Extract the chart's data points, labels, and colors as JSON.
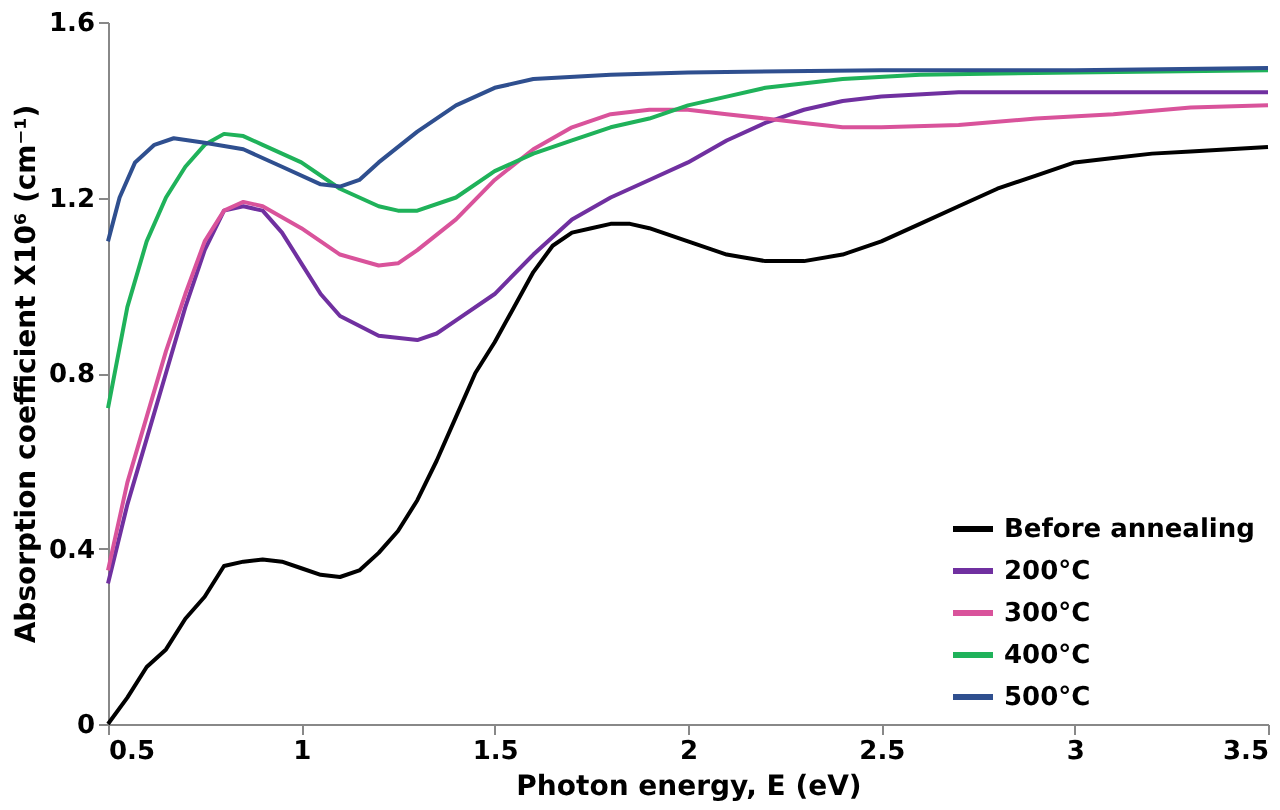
{
  "chart_data": {
    "type": "line",
    "xlabel": "Photon energy, E (eV)",
    "ylabel": "Absorption coefficient  X10⁶ (cm⁻¹)",
    "xlim": [
      0.5,
      3.5
    ],
    "xticks": [
      0.5,
      1,
      1.5,
      2,
      2.5,
      3,
      3.5
    ],
    "ylim": [
      0,
      1.6
    ],
    "yticks": [
      0,
      0.4,
      0.8,
      1.2,
      1.6
    ],
    "grid": false,
    "legend": "bottom right",
    "marker": "none",
    "line_style": "solid",
    "series": [
      {
        "name": "Before annealing",
        "color": "#000000",
        "x": [
          0.5,
          0.55,
          0.6,
          0.65,
          0.7,
          0.75,
          0.8,
          0.85,
          0.9,
          0.95,
          1.0,
          1.05,
          1.1,
          1.15,
          1.2,
          1.25,
          1.3,
          1.35,
          1.4,
          1.45,
          1.5,
          1.55,
          1.6,
          1.65,
          1.7,
          1.75,
          1.8,
          1.85,
          1.9,
          2.0,
          2.1,
          2.2,
          2.3,
          2.4,
          2.5,
          2.6,
          2.7,
          2.8,
          2.9,
          3.0,
          3.1,
          3.2,
          3.3,
          3.4,
          3.5
        ],
        "values": [
          0.0,
          0.06,
          0.13,
          0.17,
          0.24,
          0.29,
          0.36,
          0.37,
          0.375,
          0.37,
          0.355,
          0.34,
          0.335,
          0.35,
          0.39,
          0.44,
          0.51,
          0.6,
          0.7,
          0.8,
          0.87,
          0.95,
          1.03,
          1.09,
          1.12,
          1.13,
          1.14,
          1.14,
          1.13,
          1.1,
          1.07,
          1.055,
          1.055,
          1.07,
          1.1,
          1.14,
          1.18,
          1.22,
          1.25,
          1.28,
          1.29,
          1.3,
          1.305,
          1.31,
          1.315
        ]
      },
      {
        "name": "200°C",
        "color": "#7030a0",
        "x": [
          0.5,
          0.55,
          0.6,
          0.65,
          0.7,
          0.75,
          0.8,
          0.85,
          0.9,
          0.95,
          1.0,
          1.05,
          1.1,
          1.2,
          1.3,
          1.35,
          1.4,
          1.5,
          1.6,
          1.7,
          1.8,
          1.9,
          2.0,
          2.1,
          2.2,
          2.3,
          2.4,
          2.5,
          2.7,
          3.0,
          3.5
        ],
        "values": [
          0.32,
          0.5,
          0.65,
          0.8,
          0.95,
          1.08,
          1.17,
          1.18,
          1.17,
          1.12,
          1.05,
          0.98,
          0.93,
          0.885,
          0.875,
          0.89,
          0.92,
          0.98,
          1.07,
          1.15,
          1.2,
          1.24,
          1.28,
          1.33,
          1.37,
          1.4,
          1.42,
          1.43,
          1.44,
          1.44,
          1.44
        ]
      },
      {
        "name": "300°C",
        "color": "#d9539b",
        "x": [
          0.5,
          0.55,
          0.6,
          0.65,
          0.7,
          0.75,
          0.8,
          0.85,
          0.9,
          1.0,
          1.1,
          1.2,
          1.25,
          1.3,
          1.4,
          1.5,
          1.6,
          1.7,
          1.8,
          1.9,
          2.0,
          2.1,
          2.2,
          2.3,
          2.4,
          2.5,
          2.7,
          2.9,
          3.1,
          3.3,
          3.5
        ],
        "values": [
          0.35,
          0.55,
          0.7,
          0.85,
          0.98,
          1.1,
          1.17,
          1.19,
          1.18,
          1.13,
          1.07,
          1.045,
          1.05,
          1.08,
          1.15,
          1.24,
          1.31,
          1.36,
          1.39,
          1.4,
          1.4,
          1.39,
          1.38,
          1.37,
          1.36,
          1.36,
          1.365,
          1.38,
          1.39,
          1.405,
          1.41
        ]
      },
      {
        "name": "400°C",
        "color": "#1fb25a",
        "x": [
          0.5,
          0.55,
          0.6,
          0.65,
          0.7,
          0.75,
          0.8,
          0.85,
          0.9,
          1.0,
          1.1,
          1.2,
          1.25,
          1.3,
          1.4,
          1.5,
          1.6,
          1.7,
          1.8,
          1.9,
          2.0,
          2.1,
          2.2,
          2.4,
          2.6,
          3.0,
          3.5
        ],
        "values": [
          0.72,
          0.95,
          1.1,
          1.2,
          1.27,
          1.32,
          1.345,
          1.34,
          1.32,
          1.28,
          1.22,
          1.18,
          1.17,
          1.17,
          1.2,
          1.26,
          1.3,
          1.33,
          1.36,
          1.38,
          1.41,
          1.43,
          1.45,
          1.47,
          1.48,
          1.485,
          1.49
        ]
      },
      {
        "name": "500°C",
        "color": "#2f4f8f",
        "x": [
          0.5,
          0.53,
          0.57,
          0.62,
          0.67,
          0.75,
          0.85,
          0.95,
          1.05,
          1.1,
          1.15,
          1.2,
          1.3,
          1.4,
          1.5,
          1.6,
          1.8,
          2.0,
          2.5,
          3.0,
          3.5
        ],
        "values": [
          1.1,
          1.2,
          1.28,
          1.32,
          1.335,
          1.325,
          1.31,
          1.27,
          1.23,
          1.225,
          1.24,
          1.28,
          1.35,
          1.41,
          1.45,
          1.47,
          1.48,
          1.485,
          1.49,
          1.49,
          1.495
        ]
      }
    ]
  }
}
